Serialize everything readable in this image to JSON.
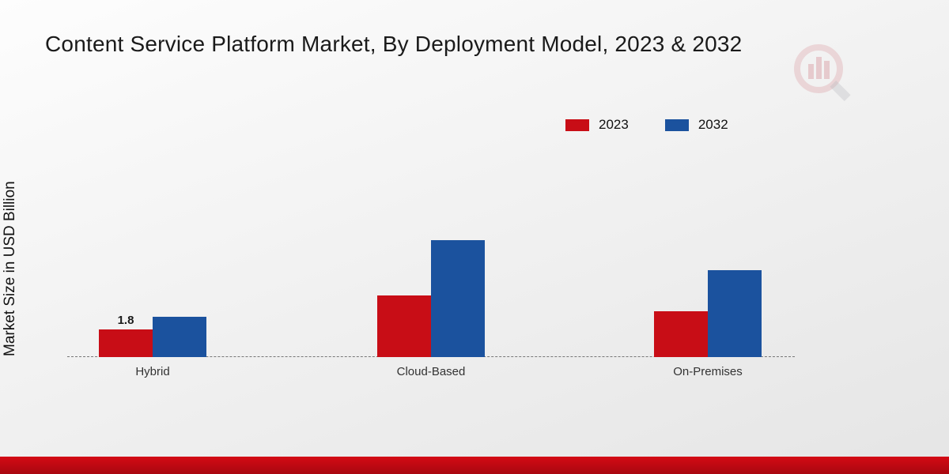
{
  "chart_data": {
    "type": "bar",
    "title": "Content Service Platform Market, By Deployment Model, 2023 & 2032",
    "ylabel": "Market Size in USD Billion",
    "categories": [
      "Hybrid",
      "Cloud-Based",
      "On-Premises"
    ],
    "series": [
      {
        "name": "2023",
        "color": "#c80d16",
        "values": [
          1.8,
          4.0,
          3.0
        ],
        "value_labels": [
          "1.8",
          "",
          ""
        ]
      },
      {
        "name": "2032",
        "color": "#1b529e",
        "values": [
          2.6,
          7.6,
          5.65
        ],
        "value_labels": [
          "",
          "",
          ""
        ]
      }
    ],
    "legend_position": "top-right",
    "grid": "off",
    "baseline_style": "dashed"
  },
  "decor": {
    "bottom_band_color": "#c00a12",
    "watermark": "bar-chart-magnifier-logo"
  }
}
